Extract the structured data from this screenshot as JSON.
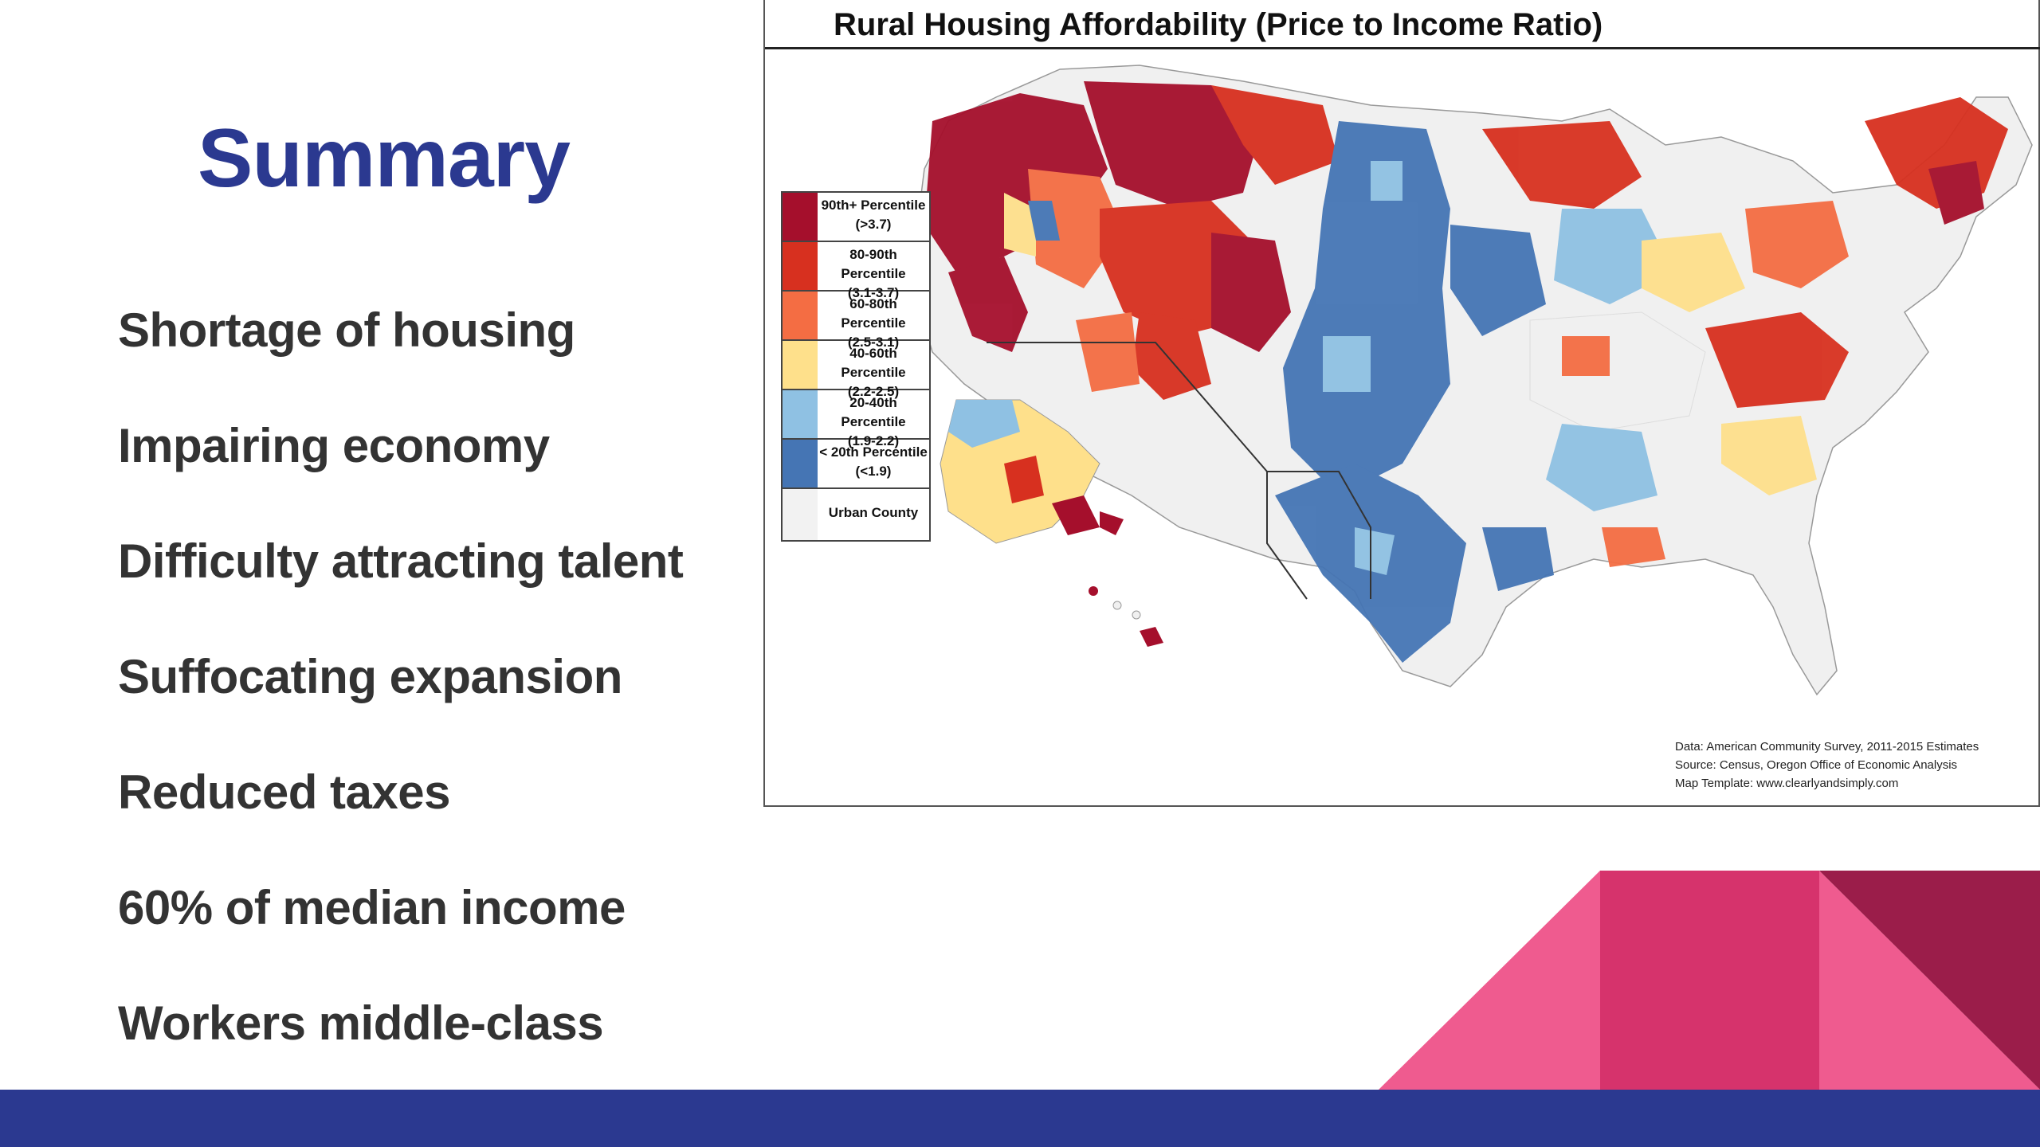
{
  "slide": {
    "title": "Summary",
    "bullets": [
      "Shortage of housing",
      "Impairing economy",
      "Difficulty attracting talent",
      "Suffocating expansion",
      "Reduced taxes",
      "60% of median income",
      "Workers middle-class"
    ]
  },
  "map": {
    "title": "Rural Housing Affordability (Price to Income Ratio)",
    "legend": [
      {
        "label": "90th+ Percentile",
        "range": "(>3.7)",
        "color": "#a50f2c"
      },
      {
        "label": "80-90th Percentile",
        "range": "(3.1-3.7)",
        "color": "#d7301f"
      },
      {
        "label": "60-80th Percentile",
        "range": "(2.5-3.1)",
        "color": "#f46d43"
      },
      {
        "label": "40-60th Percentile",
        "range": "(2.2-2.5)",
        "color": "#fee08b"
      },
      {
        "label": "20-40th Percentile",
        "range": "(1.9-2.2)",
        "color": "#8fc1e3"
      },
      {
        "label": "< 20th Percentile",
        "range": "(<1.9)",
        "color": "#4575b4"
      },
      {
        "label": "Urban County",
        "range": "",
        "color": "#f2f2f2"
      }
    ],
    "sources": [
      "Data: American Community Survey, 2011-2015 Estimates",
      "Source: Census, Oregon Office of Economic Analysis",
      "Map Template: www.clearlyandsimply.com"
    ]
  },
  "theme": {
    "title_color": "#2b3990",
    "bar_color": "#2b3990",
    "pink_light": "#ef5b8f",
    "pink_mid": "#d6336c",
    "pink_dark": "#9b1d4a"
  }
}
